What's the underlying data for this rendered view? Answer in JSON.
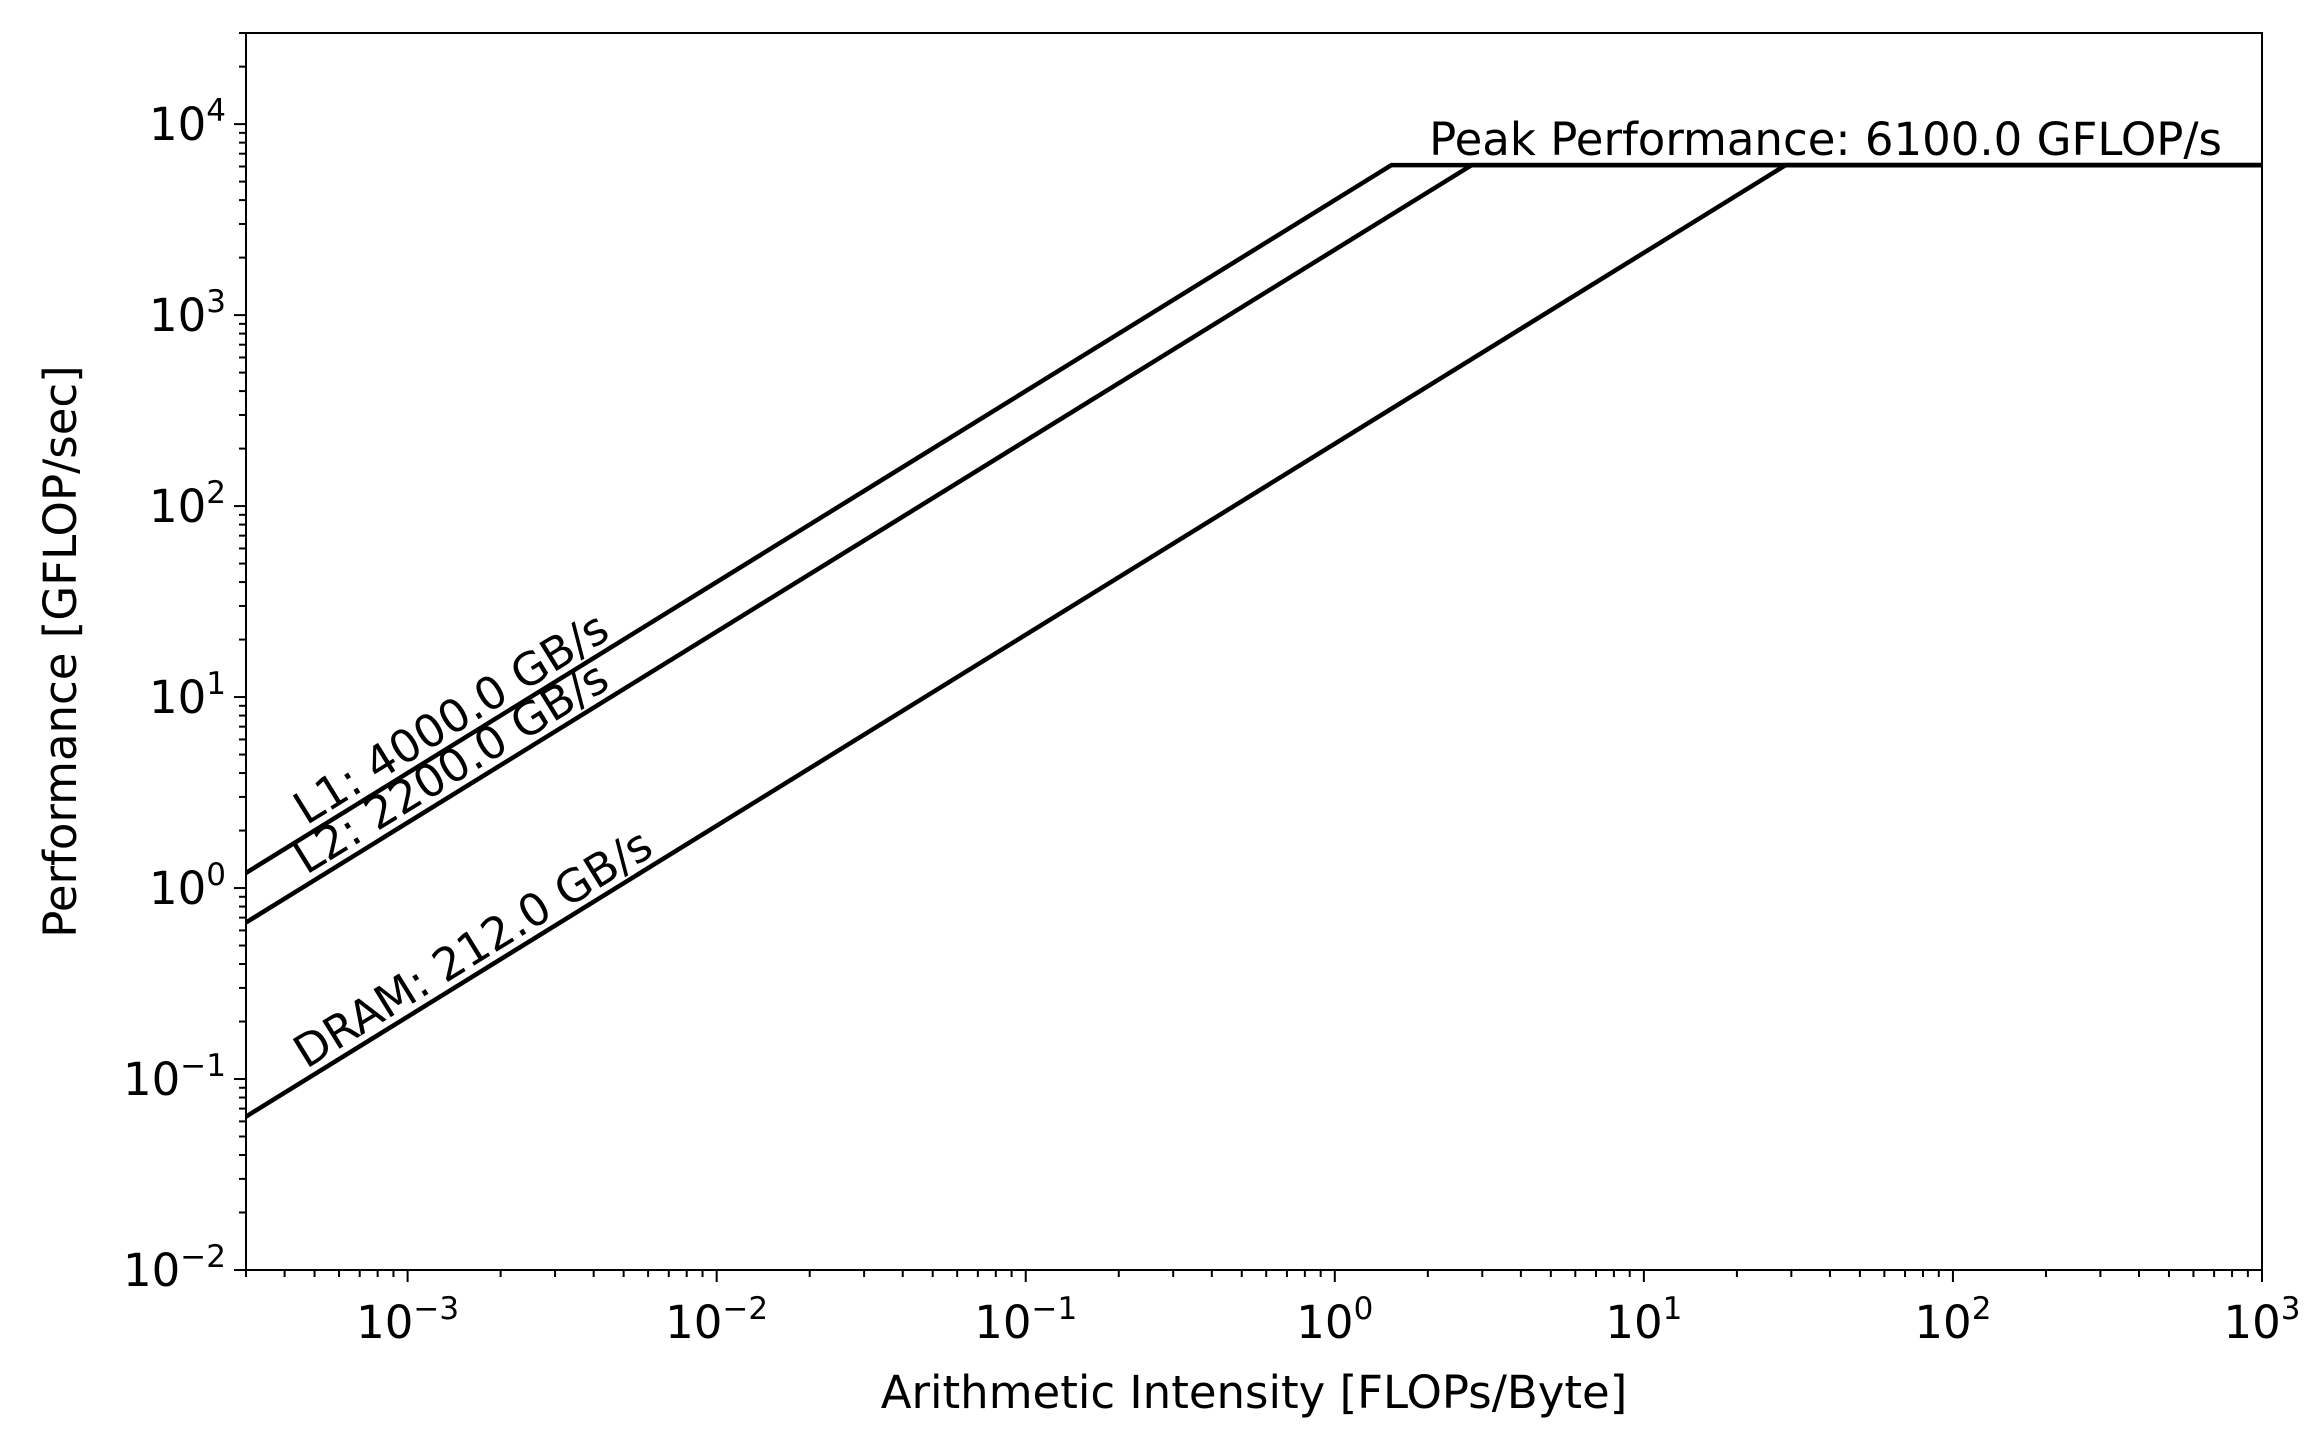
{
  "chart_data": {
    "type": "line",
    "chart_kind": "roofline",
    "title": "",
    "xlabel": "Arithmetic Intensity [FLOPs/Byte]",
    "ylabel": "Performance [GFLOP/sec]",
    "xscale": "log",
    "yscale": "log",
    "xlim": [
      0.0003,
      1000
    ],
    "ylim": [
      0.01,
      30000
    ],
    "x_major_ticks": [
      {
        "value": 0.001,
        "base": "10",
        "exp": "−3"
      },
      {
        "value": 0.01,
        "base": "10",
        "exp": "−2"
      },
      {
        "value": 0.1,
        "base": "10",
        "exp": "−1"
      },
      {
        "value": 1,
        "base": "10",
        "exp": "0"
      },
      {
        "value": 10,
        "base": "10",
        "exp": "1"
      },
      {
        "value": 100,
        "base": "10",
        "exp": "2"
      },
      {
        "value": 1000,
        "base": "10",
        "exp": "3"
      }
    ],
    "y_major_ticks": [
      {
        "value": 0.01,
        "base": "10",
        "exp": "−2"
      },
      {
        "value": 0.1,
        "base": "10",
        "exp": "−1"
      },
      {
        "value": 1,
        "base": "10",
        "exp": "0"
      },
      {
        "value": 10,
        "base": "10",
        "exp": "1"
      },
      {
        "value": 100,
        "base": "10",
        "exp": "2"
      },
      {
        "value": 1000,
        "base": "10",
        "exp": "3"
      },
      {
        "value": 10000,
        "base": "10",
        "exp": "4"
      }
    ],
    "peak": {
      "name": "Peak Performance",
      "value": 6100.0,
      "label": "Peak Performance: 6100.0 GFLOP/s"
    },
    "series": [
      {
        "name": "L1",
        "bandwidth": 4000.0,
        "label": "L1: 4000.0 GB/s",
        "label_x": 0.00047
      },
      {
        "name": "L2",
        "bandwidth": 2200.0,
        "label": "L2: 2200.0 GB/s",
        "label_x": 0.00047
      },
      {
        "name": "DRAM",
        "bandwidth": 212.0,
        "label": "DRAM: 212.0 GB/s",
        "label_x": 0.00047
      }
    ],
    "grid": false,
    "legend": "none",
    "colors": {
      "line": "#000000",
      "background": "#ffffff"
    }
  }
}
